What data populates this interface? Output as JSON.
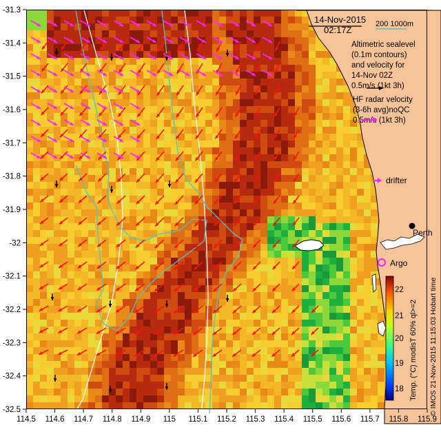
{
  "header": {
    "date": "14-Nov-2015",
    "time": "02:17Z",
    "isobaths": "200  1000m"
  },
  "legend": {
    "altimetry_lines": [
      "Altimetric sealevel",
      "(0.1m contours)",
      "and velocity for",
      "14-Nov 02Z",
      "0.5m/s (1kt 3h)"
    ],
    "hf_radar_lines": [
      "HF radar velocity",
      "(3-6h avg)noQC",
      "0.5m/s (1kt 3h)"
    ],
    "drifter": "drifter",
    "argo": "Argo",
    "perth": "Perth"
  },
  "axes": {
    "x_ticks": [
      "114.5",
      "114.6",
      "114.7",
      "114.8",
      "114.9",
      "115",
      "115.1",
      "115.2",
      "115.3",
      "115.4",
      "115.5",
      "115.6",
      "115.7",
      "115.8",
      "115.9"
    ],
    "y_ticks": [
      "-31.3",
      "-31.4",
      "-31.5",
      "-31.6",
      "-31.7",
      "-31.8",
      "-31.9",
      "-32",
      "-32.1",
      "-32.2",
      "-32.3",
      "-32.4",
      "-32.5"
    ]
  },
  "colorbar": {
    "ticks": [
      "22",
      "21",
      "20",
      "19",
      "18"
    ],
    "label": "Temp. (°C) modisT 60% ql>=2"
  },
  "credit": "© IMOS 21-Nov-2015 11:15:03 Hobart time",
  "colors": {
    "land": "#f7c49a",
    "coast": "#000000",
    "isobath_200": "#4fc4c4",
    "isobath_1000": "#ffffff",
    "hf_vector": "#ff22ff",
    "alt_vector": "#ff0000",
    "drifter": "#ff22ff",
    "argo": "#ff22ff"
  }
}
